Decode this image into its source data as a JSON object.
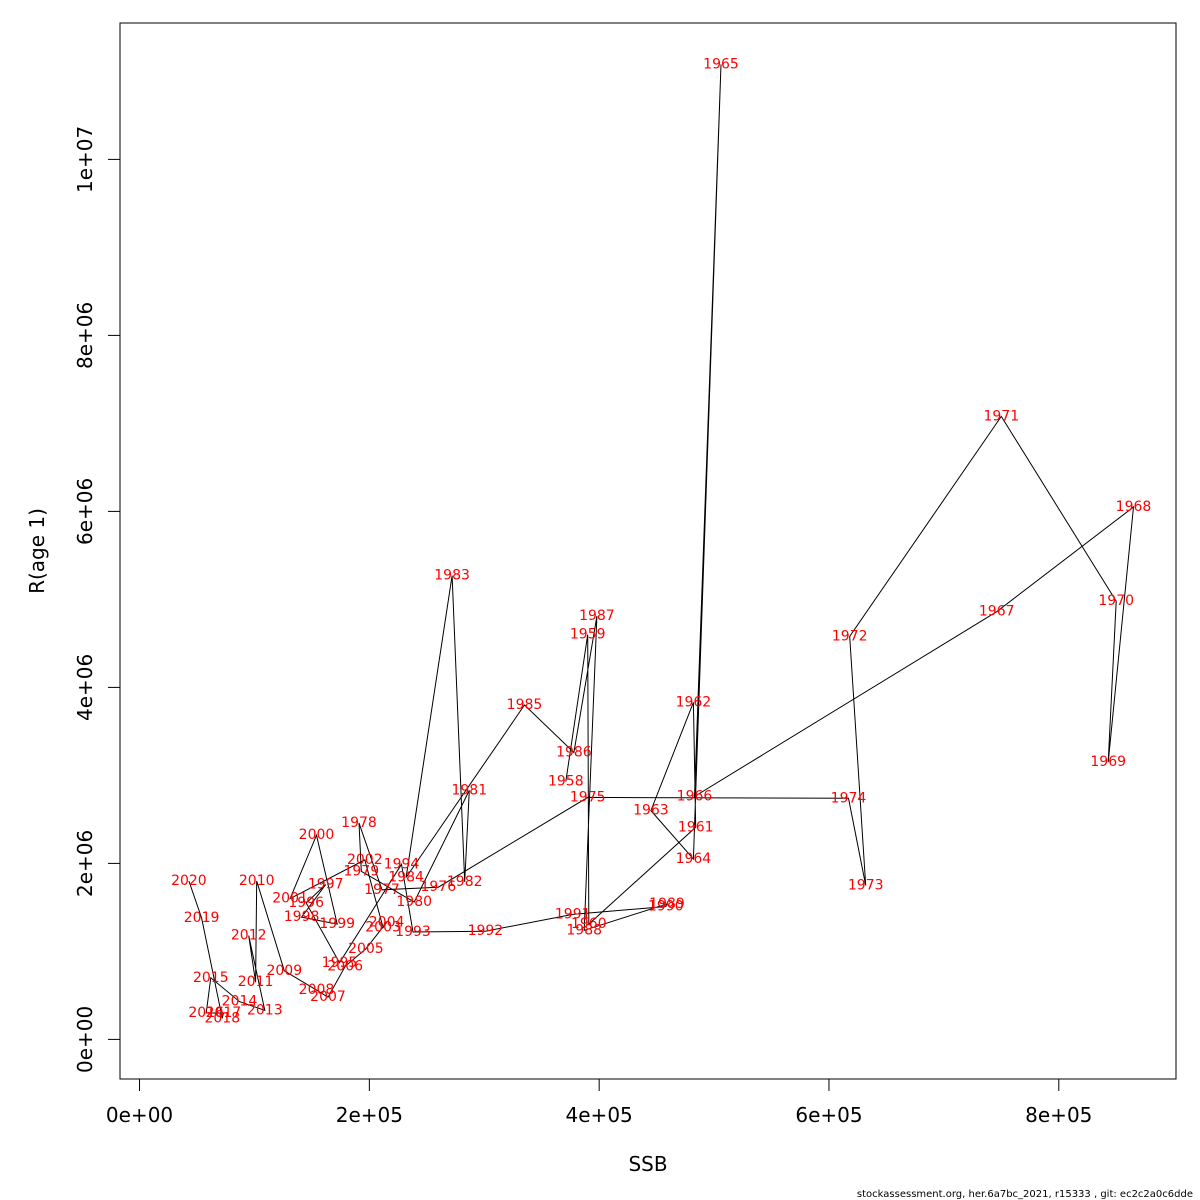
{
  "chart_data": {
    "type": "line",
    "xlabel": "SSB",
    "ylabel": "R(age 1)",
    "xlim": [
      -17000,
      902000
    ],
    "ylim": [
      -450000,
      11550000
    ],
    "x_ticks": [
      0,
      200000,
      400000,
      600000,
      800000
    ],
    "x_tick_labels": [
      "0e+00",
      "2e+05",
      "4e+05",
      "6e+05",
      "8e+05"
    ],
    "y_ticks": [
      0,
      2000000,
      4000000,
      6000000,
      8000000,
      10000000
    ],
    "y_tick_labels": [
      "0e+00",
      "2e+06",
      "4e+06",
      "6e+06",
      "8e+06",
      "1e+07"
    ],
    "grid": false,
    "point_color": "#ff0000",
    "line_color": "#000000",
    "points": [
      {
        "year": "1958",
        "ssb": 371000,
        "r": 2930000
      },
      {
        "year": "1959",
        "ssb": 390000,
        "r": 4600000
      },
      {
        "year": "1960",
        "ssb": 391000,
        "r": 1310000
      },
      {
        "year": "1961",
        "ssb": 484000,
        "r": 2410000
      },
      {
        "year": "1962",
        "ssb": 482000,
        "r": 3830000
      },
      {
        "year": "1963",
        "ssb": 445000,
        "r": 2600000
      },
      {
        "year": "1964",
        "ssb": 482000,
        "r": 2050000
      },
      {
        "year": "1965",
        "ssb": 506000,
        "r": 11080000
      },
      {
        "year": "1966",
        "ssb": 483000,
        "r": 2760000
      },
      {
        "year": "1967",
        "ssb": 746000,
        "r": 4860000
      },
      {
        "year": "1968",
        "ssb": 865000,
        "r": 6050000
      },
      {
        "year": "1969",
        "ssb": 843000,
        "r": 3150000
      },
      {
        "year": "1970",
        "ssb": 850000,
        "r": 4980000
      },
      {
        "year": "1971",
        "ssb": 750000,
        "r": 7080000
      },
      {
        "year": "1972",
        "ssb": 618000,
        "r": 4580000
      },
      {
        "year": "1973",
        "ssb": 632000,
        "r": 1750000
      },
      {
        "year": "1974",
        "ssb": 617000,
        "r": 2740000
      },
      {
        "year": "1975",
        "ssb": 390000,
        "r": 2750000
      },
      {
        "year": "1976",
        "ssb": 260000,
        "r": 1730000
      },
      {
        "year": "1977",
        "ssb": 211000,
        "r": 1700000
      },
      {
        "year": "1978",
        "ssb": 191000,
        "r": 2460000
      },
      {
        "year": "1979",
        "ssb": 193000,
        "r": 1910000
      },
      {
        "year": "1980",
        "ssb": 239000,
        "r": 1560000
      },
      {
        "year": "1981",
        "ssb": 287000,
        "r": 2830000
      },
      {
        "year": "1982",
        "ssb": 283000,
        "r": 1790000
      },
      {
        "year": "1983",
        "ssb": 272000,
        "r": 5270000
      },
      {
        "year": "1984",
        "ssb": 232000,
        "r": 1840000
      },
      {
        "year": "1985",
        "ssb": 335000,
        "r": 3800000
      },
      {
        "year": "1986",
        "ssb": 378000,
        "r": 3260000
      },
      {
        "year": "1987",
        "ssb": 398000,
        "r": 4810000
      },
      {
        "year": "1988",
        "ssb": 387000,
        "r": 1240000
      },
      {
        "year": "1989",
        "ssb": 459000,
        "r": 1540000
      },
      {
        "year": "1990",
        "ssb": 458000,
        "r": 1510000
      },
      {
        "year": "1991",
        "ssb": 377000,
        "r": 1420000
      },
      {
        "year": "1992",
        "ssb": 301000,
        "r": 1230000
      },
      {
        "year": "1993",
        "ssb": 238000,
        "r": 1220000
      },
      {
        "year": "1994",
        "ssb": 228000,
        "r": 1990000
      },
      {
        "year": "1995",
        "ssb": 174000,
        "r": 870000
      },
      {
        "year": "1996",
        "ssb": 145000,
        "r": 1550000
      },
      {
        "year": "1997",
        "ssb": 162000,
        "r": 1760000
      },
      {
        "year": "1998",
        "ssb": 141000,
        "r": 1390000
      },
      {
        "year": "1999",
        "ssb": 172000,
        "r": 1310000
      },
      {
        "year": "2000",
        "ssb": 154000,
        "r": 2320000
      },
      {
        "year": "2001",
        "ssb": 131000,
        "r": 1600000
      },
      {
        "year": "2002",
        "ssb": 196000,
        "r": 2040000
      },
      {
        "year": "2003",
        "ssb": 212000,
        "r": 1270000
      },
      {
        "year": "2004",
        "ssb": 215000,
        "r": 1330000
      },
      {
        "year": "2005",
        "ssb": 197000,
        "r": 1030000
      },
      {
        "year": "2006",
        "ssb": 179000,
        "r": 830000
      },
      {
        "year": "2007",
        "ssb": 164000,
        "r": 480000
      },
      {
        "year": "2008",
        "ssb": 154000,
        "r": 560000
      },
      {
        "year": "2009",
        "ssb": 126000,
        "r": 780000
      },
      {
        "year": "2010",
        "ssb": 102000,
        "r": 1800000
      },
      {
        "year": "2011",
        "ssb": 101000,
        "r": 650000
      },
      {
        "year": "2012",
        "ssb": 95000,
        "r": 1180000
      },
      {
        "year": "2013",
        "ssb": 109000,
        "r": 330000
      },
      {
        "year": "2014",
        "ssb": 87000,
        "r": 430000
      },
      {
        "year": "2015",
        "ssb": 62000,
        "r": 700000
      },
      {
        "year": "2016",
        "ssb": 58000,
        "r": 300000
      },
      {
        "year": "2017",
        "ssb": 73000,
        "r": 300000
      },
      {
        "year": "2018",
        "ssb": 72000,
        "r": 240000
      },
      {
        "year": "2019",
        "ssb": 54000,
        "r": 1380000
      },
      {
        "year": "2020",
        "ssb": 43000,
        "r": 1800000
      }
    ]
  },
  "footer": "stockassessment.org, her.6a7bc_2021, r15333 , git: ec2c2a0c6dde"
}
